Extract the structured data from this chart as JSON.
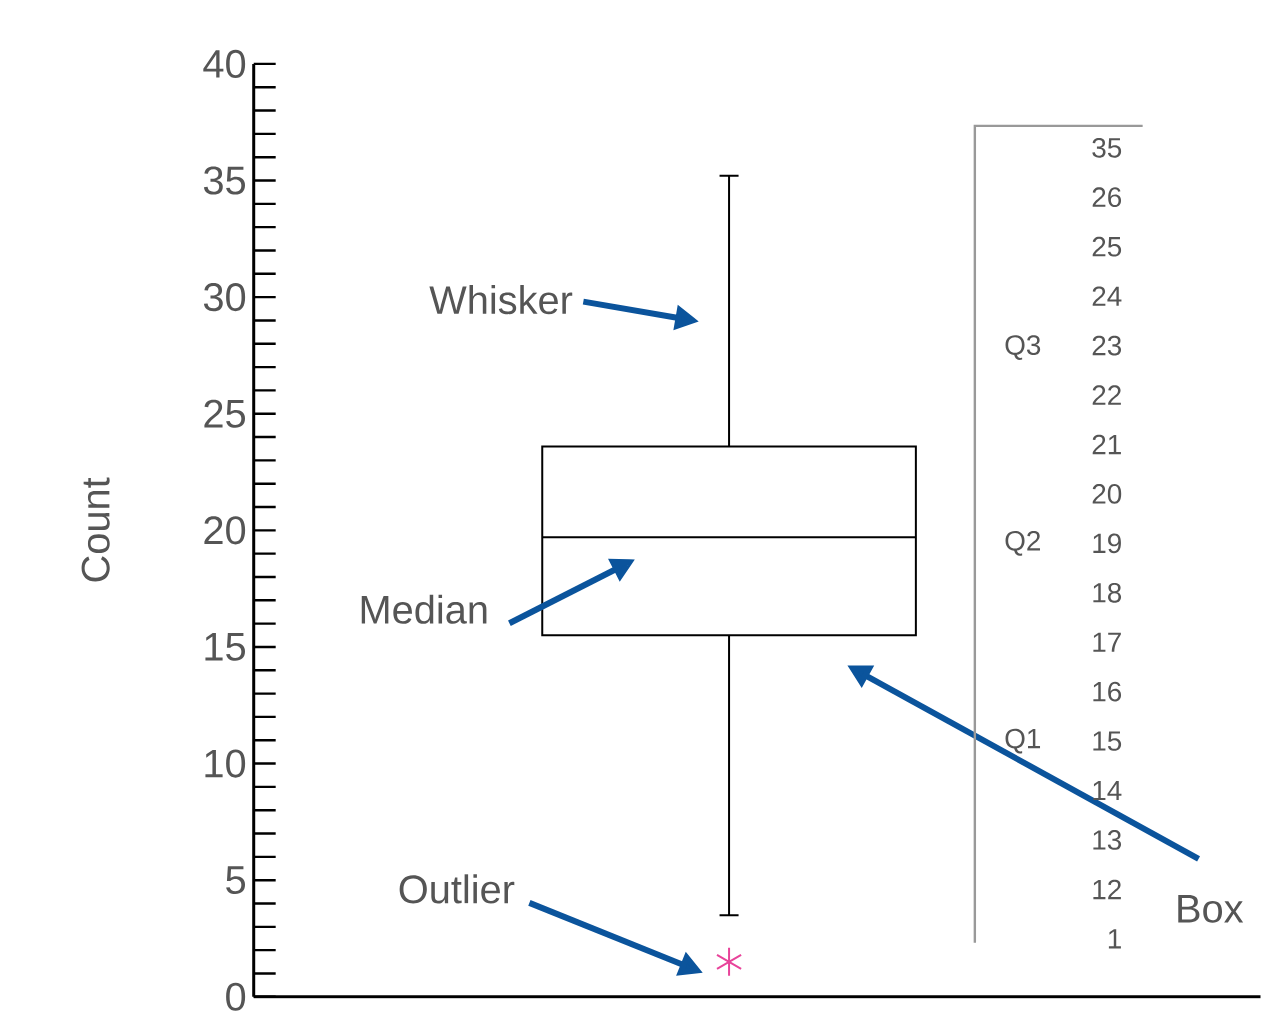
{
  "chart_data": {
    "type": "box",
    "ylabel": "Count",
    "categories": [
      null
    ],
    "color": "#000000",
    "boxes": [
      {
        "low": 3.5,
        "q1": 15.5,
        "median": 19.7,
        "q3": 23.6,
        "high": 35.2,
        "outliers": [
          1.5
        ]
      }
    ],
    "ylim": [
      0,
      40
    ],
    "yticks": [
      0,
      5,
      10,
      15,
      20,
      25,
      30,
      35,
      40
    ],
    "grid": false,
    "marker": "star",
    "annotations": [
      "Whisker",
      "Median",
      "Outlier",
      "Box",
      "Q3",
      "Q2",
      "Q1",
      "35",
      "26",
      "25",
      "24",
      "23",
      "22",
      "21",
      "20",
      "19",
      "18",
      "17",
      "16",
      "15",
      "14",
      "13",
      "12",
      "1"
    ]
  }
}
